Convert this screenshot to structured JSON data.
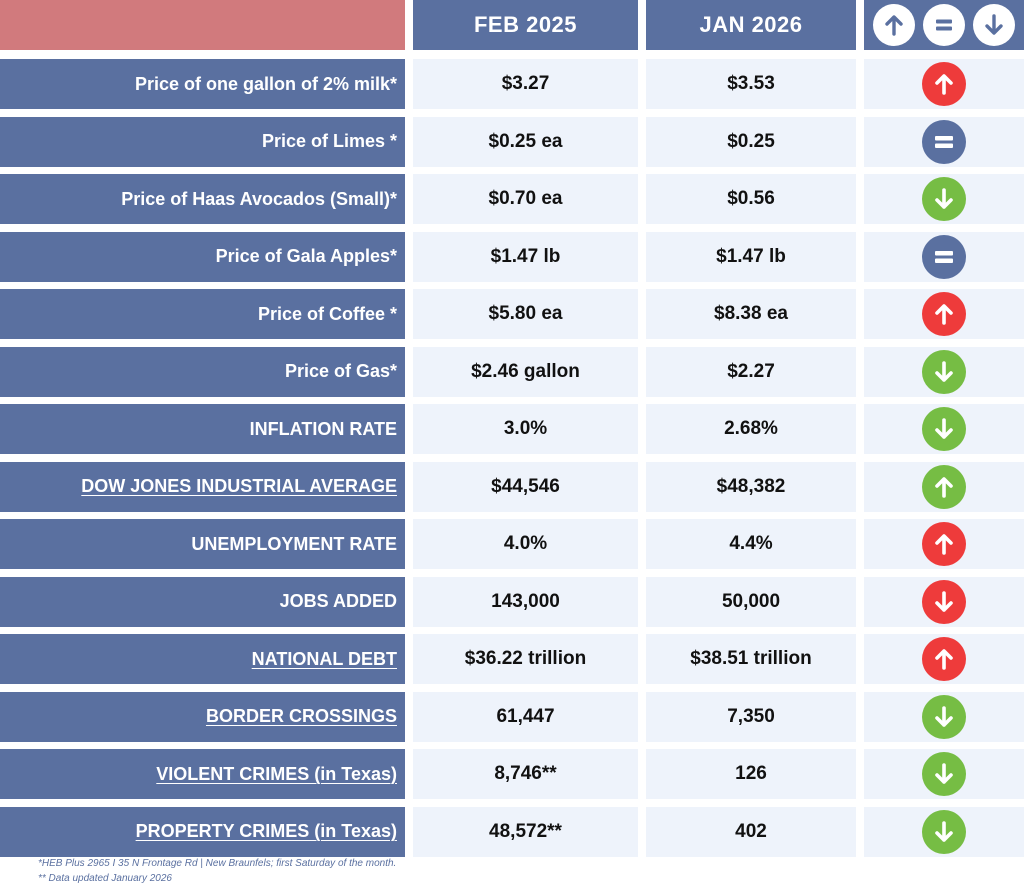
{
  "header": {
    "col1": "FEB 2025",
    "col2": "JAN 2026",
    "icons": [
      "up-arrow-icon",
      "equal-icon",
      "down-arrow-icon"
    ]
  },
  "rows": [
    {
      "label": "Price of one gallon of 2% milk*",
      "feb": "$3.27",
      "jan": "$3.53",
      "trend": "up-red"
    },
    {
      "label": "Price of Limes *",
      "feb": "$0.25 ea",
      "jan": "$0.25",
      "trend": "equal"
    },
    {
      "label": "Price of Haas Avocados (Small)*",
      "feb": "$0.70 ea",
      "jan": "$0.56",
      "trend": "down-green"
    },
    {
      "label": "Price of Gala Apples*",
      "feb": "$1.47 lb",
      "jan": "$1.47 lb",
      "trend": "equal"
    },
    {
      "label": "Price of Coffee *",
      "feb": "$5.80 ea",
      "jan": "$8.38 ea",
      "trend": "up-red"
    },
    {
      "label": "Price of Gas*",
      "feb": "$2.46 gallon",
      "jan": "$2.27",
      "trend": "down-green"
    },
    {
      "label": "INFLATION RATE",
      "feb": "3.0%",
      "jan": "2.68%",
      "trend": "down-green"
    },
    {
      "label": "DOW JONES INDUSTRIAL AVERAGE",
      "feb": "$44,546",
      "jan": "$48,382",
      "trend": "up-green",
      "link": true
    },
    {
      "label": "UNEMPLOYMENT RATE",
      "feb": "4.0%",
      "jan": "4.4%",
      "trend": "up-red"
    },
    {
      "label": "JOBS ADDED",
      "feb": "143,000",
      "jan": "50,000",
      "trend": "down-red"
    },
    {
      "label": "NATIONAL DEBT",
      "feb": "$36.22 trillion",
      "jan": "$38.51 trillion",
      "trend": "up-red",
      "link": true
    },
    {
      "label": "BORDER CROSSINGS",
      "feb": "61,447",
      "jan": "7,350",
      "trend": "down-green",
      "link": true
    },
    {
      "label": "VIOLENT CRIMES (in Texas)",
      "feb": "8,746**",
      "jan": "126",
      "trend": "down-green",
      "link": true
    },
    {
      "label": "PROPERTY CRIMES (in Texas)",
      "feb": "48,572**",
      "jan": "402",
      "trend": "down-green",
      "link": true
    }
  ],
  "footnotes": {
    "line1": "*HEB Plus 2965 I 35 N Frontage Rd | New Braunfels; first Saturday of the month.",
    "line2": "** Data updated January 2026"
  },
  "colors": {
    "navy": "#5a70a0",
    "header_pink": "#d17a7d",
    "cell_bg": "#eef3fb",
    "red": "#ee3b3b",
    "green": "#76bd44"
  }
}
